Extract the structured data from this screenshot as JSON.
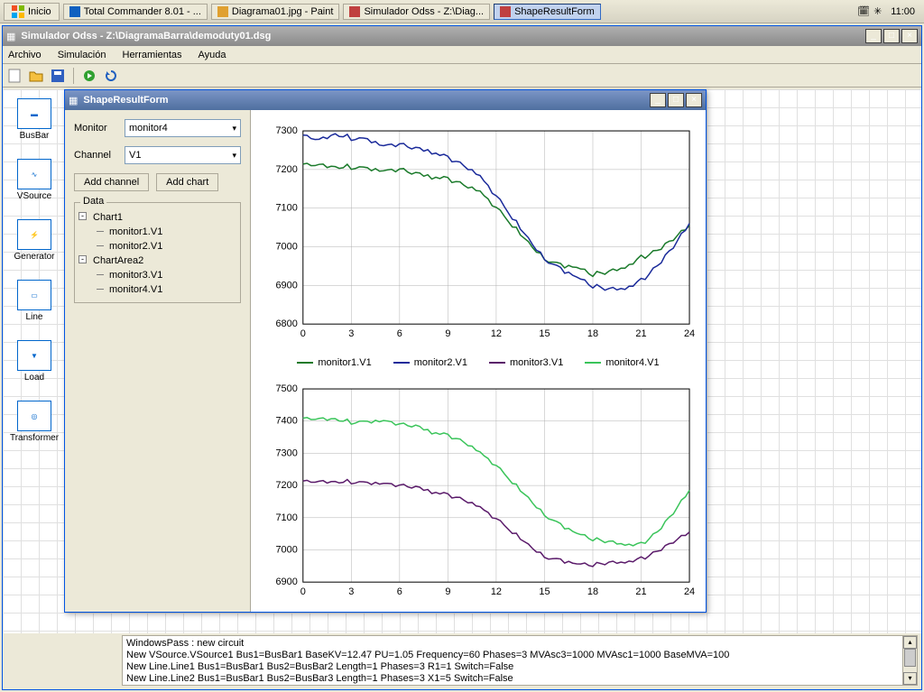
{
  "taskbar": {
    "start": "Inicio",
    "items": [
      {
        "label": "Total Commander 8.01 - ...",
        "icon_color": "#1060c0"
      },
      {
        "label": "Diagrama01.jpg - Paint",
        "icon_color": "#e0a030"
      },
      {
        "label": "Simulador Odss - Z:\\Diag...",
        "icon_color": "#c04040"
      },
      {
        "label": "ShapeResultForm",
        "icon_color": "#c04040",
        "active": true
      }
    ],
    "clock": "11:00"
  },
  "main_window": {
    "title": "Simulador Odss - Z:\\DiagramaBarra\\demoduty01.dsg",
    "menus": [
      "Archivo",
      "Simulación",
      "Herramientas",
      "Ayuda"
    ]
  },
  "palette": [
    {
      "label": "BusBar"
    },
    {
      "label": "VSource"
    },
    {
      "label": "Generator"
    },
    {
      "label": "Line"
    },
    {
      "label": "Load"
    },
    {
      "label": "Transformer"
    }
  ],
  "shape_window": {
    "title": "ShapeResultForm",
    "monitor_label": "Monitor",
    "monitor_value": "monitor4",
    "channel_label": "Channel",
    "channel_value": "V1",
    "add_channel": "Add channel",
    "add_chart": "Add chart",
    "data_legend": "Data",
    "tree": [
      {
        "label": "Chart1",
        "children": [
          "monitor1.V1",
          "monitor2.V1"
        ]
      },
      {
        "label": "ChartArea2",
        "children": [
          "monitor3.V1",
          "monitor4.V1"
        ]
      }
    ]
  },
  "legend": [
    {
      "label": "monitor1.V1",
      "color": "#1a7a2a"
    },
    {
      "label": "monitor2.V1",
      "color": "#1a2a9a"
    },
    {
      "label": "monitor3.V1",
      "color": "#5a1a6a"
    },
    {
      "label": "monitor4.V1",
      "color": "#3ac45a"
    }
  ],
  "chart1": {
    "type": "line",
    "xlim": [
      0,
      24
    ],
    "xtick_step": 3,
    "ylim": [
      6800,
      7300
    ],
    "ytick_step": 100,
    "background": "#ffffff",
    "grid": "#b0b0b0",
    "series": [
      {
        "color": "#1a7a2a",
        "width": 1.5,
        "data": [
          [
            0,
            7210
          ],
          [
            1,
            7215
          ],
          [
            2,
            7205
          ],
          [
            3,
            7210
          ],
          [
            4,
            7200
          ],
          [
            5,
            7195
          ],
          [
            6,
            7200
          ],
          [
            7,
            7190
          ],
          [
            8,
            7185
          ],
          [
            9,
            7175
          ],
          [
            10,
            7160
          ],
          [
            11,
            7140
          ],
          [
            12,
            7100
          ],
          [
            13,
            7060
          ],
          [
            14,
            7010
          ],
          [
            15,
            6970
          ],
          [
            16,
            6950
          ],
          [
            17,
            6945
          ],
          [
            18,
            6930
          ],
          [
            19,
            6935
          ],
          [
            20,
            6950
          ],
          [
            21,
            6970
          ],
          [
            22,
            6990
          ],
          [
            23,
            7020
          ],
          [
            24,
            7055
          ]
        ]
      },
      {
        "color": "#1a2a9a",
        "width": 1.5,
        "data": [
          [
            0,
            7285
          ],
          [
            1,
            7280
          ],
          [
            2,
            7290
          ],
          [
            3,
            7285
          ],
          [
            4,
            7275
          ],
          [
            5,
            7260
          ],
          [
            6,
            7265
          ],
          [
            7,
            7255
          ],
          [
            8,
            7250
          ],
          [
            9,
            7230
          ],
          [
            10,
            7210
          ],
          [
            11,
            7180
          ],
          [
            12,
            7130
          ],
          [
            13,
            7080
          ],
          [
            14,
            7020
          ],
          [
            15,
            6970
          ],
          [
            16,
            6940
          ],
          [
            17,
            6920
          ],
          [
            18,
            6900
          ],
          [
            19,
            6890
          ],
          [
            20,
            6895
          ],
          [
            21,
            6910
          ],
          [
            22,
            6950
          ],
          [
            23,
            7000
          ],
          [
            24,
            7060
          ]
        ]
      }
    ]
  },
  "chart2": {
    "type": "line",
    "xlim": [
      0,
      24
    ],
    "xtick_step": 3,
    "ylim": [
      6900,
      7500
    ],
    "ytick_step": 100,
    "background": "#ffffff",
    "grid": "#b0b0b0",
    "series": [
      {
        "color": "#5a1a6a",
        "width": 1.5,
        "data": [
          [
            0,
            7210
          ],
          [
            1,
            7215
          ],
          [
            2,
            7210
          ],
          [
            3,
            7215
          ],
          [
            4,
            7205
          ],
          [
            5,
            7205
          ],
          [
            6,
            7200
          ],
          [
            7,
            7195
          ],
          [
            8,
            7185
          ],
          [
            9,
            7170
          ],
          [
            10,
            7155
          ],
          [
            11,
            7130
          ],
          [
            12,
            7095
          ],
          [
            13,
            7060
          ],
          [
            14,
            7015
          ],
          [
            15,
            6980
          ],
          [
            16,
            6965
          ],
          [
            17,
            6955
          ],
          [
            18,
            6955
          ],
          [
            19,
            6960
          ],
          [
            20,
            6965
          ],
          [
            21,
            6970
          ],
          [
            22,
            6995
          ],
          [
            23,
            7025
          ],
          [
            24,
            7055
          ]
        ]
      },
      {
        "color": "#3ac45a",
        "width": 1.5,
        "data": [
          [
            0,
            7405
          ],
          [
            1,
            7410
          ],
          [
            2,
            7405
          ],
          [
            3,
            7400
          ],
          [
            4,
            7395
          ],
          [
            5,
            7400
          ],
          [
            6,
            7390
          ],
          [
            7,
            7385
          ],
          [
            8,
            7370
          ],
          [
            9,
            7355
          ],
          [
            10,
            7335
          ],
          [
            11,
            7300
          ],
          [
            12,
            7260
          ],
          [
            13,
            7215
          ],
          [
            14,
            7160
          ],
          [
            15,
            7110
          ],
          [
            16,
            7075
          ],
          [
            17,
            7050
          ],
          [
            18,
            7035
          ],
          [
            19,
            7025
          ],
          [
            20,
            7020
          ],
          [
            21,
            7015
          ],
          [
            22,
            7055
          ],
          [
            23,
            7115
          ],
          [
            24,
            7185
          ]
        ]
      }
    ]
  },
  "log": [
    "WindowsPass : new circuit",
    "New VSource.VSource1 Bus1=BusBar1 BaseKV=12.47 PU=1.05 Frequency=60 Phases=3 MVAsc3=1000 MVAsc1=1000 BaseMVA=100",
    "New Line.Line1 Bus1=BusBar1 Bus2=BusBar2 Length=1 Phases=3 R1=1 Switch=False",
    "New Line.Line2 Bus1=BusBar1 Bus2=BusBar3 Length=1 Phases=3 X1=5 Switch=False"
  ]
}
